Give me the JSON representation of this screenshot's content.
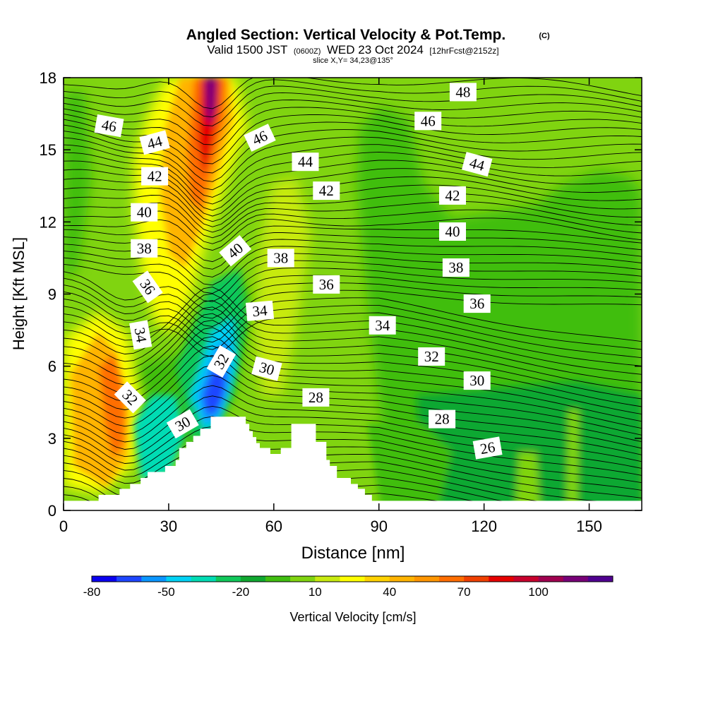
{
  "chart_data": {
    "type": "heatmap",
    "title": "Angled Section: Vertical Velocity & Pot.Temp.",
    "copyright_mark": "(C)",
    "subtitle_parts": [
      "Valid 1500 JST",
      "(0600Z)",
      "WED 23 Oct 2024",
      "[12hrFcst@2152z]"
    ],
    "slice_note": "slice X,Y= 34,23@135°",
    "xlabel": "Distance [nm]",
    "ylabel": "Height [Kft MSL]",
    "xlim": [
      0,
      165
    ],
    "ylim": [
      0,
      18
    ],
    "x_ticks": [
      0,
      30,
      60,
      90,
      120,
      150
    ],
    "x_tick_labels": [
      "0",
      "30",
      "60",
      "90",
      "120",
      "150"
    ],
    "y_ticks": [
      0,
      3,
      6,
      9,
      12,
      15,
      18
    ],
    "y_tick_labels": [
      "0",
      "3",
      "6",
      "9",
      "12",
      "15",
      "18"
    ],
    "colorbar": {
      "label": "Vertical Velocity [cm/s]",
      "levels": [
        -80,
        -70,
        -60,
        -50,
        -40,
        -30,
        -20,
        -10,
        0,
        10,
        20,
        30,
        40,
        50,
        60,
        70,
        80,
        90,
        100,
        110,
        120
      ],
      "tick_labels": [
        "-80",
        "-50",
        "-20",
        "10",
        "40",
        "70",
        "100"
      ],
      "tick_values": [
        -80,
        -50,
        -20,
        10,
        40,
        70,
        100
      ],
      "colors": [
        "#0a00f0",
        "#1e46ff",
        "#0a96ff",
        "#00d2f5",
        "#00dcb4",
        "#10c85a",
        "#10a830",
        "#40be10",
        "#80d410",
        "#c8ea10",
        "#ffff00",
        "#ffd200",
        "#ffb400",
        "#ff9600",
        "#ff6e00",
        "#f04000",
        "#e60000",
        "#c8002d",
        "#a00050",
        "#780078",
        "#500090"
      ]
    },
    "theta_contour_labels": [
      {
        "text": "46",
        "x": 13,
        "y": 16.0,
        "rotate": 10
      },
      {
        "text": "44",
        "x": 26,
        "y": 15.3,
        "rotate": -15
      },
      {
        "text": "42",
        "x": 26,
        "y": 13.9,
        "rotate": 0
      },
      {
        "text": "40",
        "x": 23,
        "y": 12.4,
        "rotate": 0
      },
      {
        "text": "38",
        "x": 23,
        "y": 10.9,
        "rotate": 0
      },
      {
        "text": "36",
        "x": 24,
        "y": 9.3,
        "rotate": 55
      },
      {
        "text": "34",
        "x": 22,
        "y": 7.3,
        "rotate": 80
      },
      {
        "text": "32",
        "x": 19,
        "y": 4.7,
        "rotate": 45
      },
      {
        "text": "30",
        "x": 34,
        "y": 3.6,
        "rotate": -30
      },
      {
        "text": "32",
        "x": 45,
        "y": 6.2,
        "rotate": -60
      },
      {
        "text": "40",
        "x": 49,
        "y": 10.8,
        "rotate": -40
      },
      {
        "text": "46",
        "x": 56,
        "y": 15.5,
        "rotate": -25
      },
      {
        "text": "44",
        "x": 69,
        "y": 14.5,
        "rotate": 0
      },
      {
        "text": "38",
        "x": 62,
        "y": 10.5,
        "rotate": 0
      },
      {
        "text": "34",
        "x": 56,
        "y": 8.3,
        "rotate": -5
      },
      {
        "text": "30",
        "x": 58,
        "y": 5.9,
        "rotate": 15
      },
      {
        "text": "28",
        "x": 72,
        "y": 4.7,
        "rotate": 0
      },
      {
        "text": "42",
        "x": 75,
        "y": 13.3,
        "rotate": 0
      },
      {
        "text": "36",
        "x": 75,
        "y": 9.4,
        "rotate": 0
      },
      {
        "text": "34",
        "x": 91,
        "y": 7.7,
        "rotate": 0
      },
      {
        "text": "32",
        "x": 105,
        "y": 6.4,
        "rotate": 0
      },
      {
        "text": "30",
        "x": 118,
        "y": 5.4,
        "rotate": 0
      },
      {
        "text": "28",
        "x": 108,
        "y": 3.8,
        "rotate": 0
      },
      {
        "text": "26",
        "x": 121,
        "y": 2.6,
        "rotate": -10
      },
      {
        "text": "36",
        "x": 118,
        "y": 8.6,
        "rotate": 0
      },
      {
        "text": "38",
        "x": 112,
        "y": 10.1,
        "rotate": 0
      },
      {
        "text": "40",
        "x": 111,
        "y": 11.6,
        "rotate": 0
      },
      {
        "text": "42",
        "x": 111,
        "y": 13.1,
        "rotate": 0
      },
      {
        "text": "44",
        "x": 118,
        "y": 14.4,
        "rotate": 15
      },
      {
        "text": "46",
        "x": 104,
        "y": 16.2,
        "rotate": 0
      },
      {
        "text": "48",
        "x": 114,
        "y": 17.4,
        "rotate": 0
      }
    ],
    "terrain_profile": [
      [
        0,
        0.4
      ],
      [
        10,
        0.4
      ],
      [
        10,
        0.65
      ],
      [
        16,
        0.65
      ],
      [
        16,
        0.9
      ],
      [
        19,
        0.9
      ],
      [
        19,
        1.1
      ],
      [
        22,
        1.1
      ],
      [
        22,
        1.35
      ],
      [
        24,
        1.35
      ],
      [
        24,
        1.6
      ],
      [
        29,
        1.6
      ],
      [
        29,
        1.85
      ],
      [
        32,
        1.85
      ],
      [
        32,
        2.1
      ],
      [
        33,
        2.1
      ],
      [
        33,
        2.6
      ],
      [
        35,
        2.6
      ],
      [
        35,
        2.85
      ],
      [
        37,
        2.85
      ],
      [
        37,
        3.1
      ],
      [
        39,
        3.1
      ],
      [
        39,
        3.4
      ],
      [
        42,
        3.4
      ],
      [
        42,
        3.9
      ],
      [
        52,
        3.9
      ],
      [
        52,
        3.6
      ],
      [
        53,
        3.6
      ],
      [
        53,
        3.3
      ],
      [
        54,
        3.3
      ],
      [
        54,
        3.05
      ],
      [
        55,
        3.05
      ],
      [
        55,
        2.8
      ],
      [
        56,
        2.8
      ],
      [
        56,
        2.6
      ],
      [
        59,
        2.6
      ],
      [
        59,
        2.35
      ],
      [
        62,
        2.35
      ],
      [
        62,
        2.6
      ],
      [
        65,
        2.6
      ],
      [
        65,
        3.6
      ],
      [
        72,
        3.6
      ],
      [
        72,
        2.85
      ],
      [
        75,
        2.85
      ],
      [
        75,
        2.1
      ],
      [
        76,
        2.1
      ],
      [
        76,
        1.85
      ],
      [
        78,
        1.85
      ],
      [
        78,
        1.35
      ],
      [
        82,
        1.35
      ],
      [
        82,
        1.1
      ],
      [
        84,
        1.1
      ],
      [
        84,
        0.9
      ],
      [
        86,
        0.9
      ],
      [
        86,
        0.65
      ],
      [
        88,
        0.65
      ],
      [
        88,
        0.4
      ],
      [
        165,
        0.4
      ]
    ]
  }
}
